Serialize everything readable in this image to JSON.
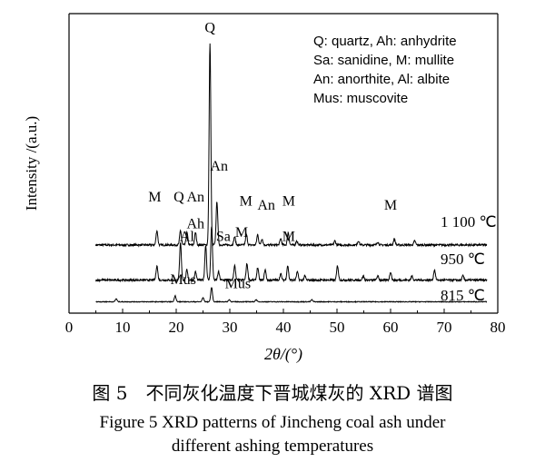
{
  "caption_cn": "图 5　不同灰化温度下晋城煤灰的 XRD 谱图",
  "caption_en_line1": "Figure 5    XRD patterns of Jincheng coal ash under",
  "caption_en_line2": "different ashing temperatures",
  "chart_data": {
    "type": "line",
    "xlabel": "2θ/(°)",
    "ylabel": "Intensity /(a.u.)",
    "xlim": [
      0,
      80
    ],
    "xticks": [
      0,
      10,
      20,
      30,
      40,
      50,
      60,
      70,
      80
    ],
    "grid": false,
    "legend": {
      "placement": "top-right",
      "entries": [
        "Q: quartz, Ah: anhydrite",
        "Sa: sanidine, M: mullite",
        "An: anorthite, Al: albite",
        "Mus: muscovite"
      ]
    },
    "series": [
      {
        "name": "1 100 ℃",
        "baseline": 0.33,
        "x_range": [
          5,
          78
        ],
        "peaks": [
          {
            "x": 16.4,
            "h": 0.07
          },
          {
            "x": 20.8,
            "h": 0.07
          },
          {
            "x": 22.0,
            "h": 0.06
          },
          {
            "x": 23.6,
            "h": 0.06
          },
          {
            "x": 26.3,
            "h": 0.98
          },
          {
            "x": 27.6,
            "h": 0.21
          },
          {
            "x": 30.9,
            "h": 0.04
          },
          {
            "x": 33.1,
            "h": 0.05
          },
          {
            "x": 35.2,
            "h": 0.05
          },
          {
            "x": 36.0,
            "h": 0.03
          },
          {
            "x": 39.5,
            "h": 0.03
          },
          {
            "x": 40.9,
            "h": 0.06
          },
          {
            "x": 42.5,
            "h": 0.02
          },
          {
            "x": 49.6,
            "h": 0.02
          },
          {
            "x": 54.0,
            "h": 0.02
          },
          {
            "x": 57.6,
            "h": 0.015
          },
          {
            "x": 60.7,
            "h": 0.03
          },
          {
            "x": 64.5,
            "h": 0.02
          }
        ]
      },
      {
        "name": "950 ℃",
        "baseline": 0.16,
        "x_range": [
          5,
          78
        ],
        "peaks": [
          {
            "x": 16.4,
            "h": 0.07
          },
          {
            "x": 20.8,
            "h": 0.18
          },
          {
            "x": 22.0,
            "h": 0.05
          },
          {
            "x": 23.6,
            "h": 0.04
          },
          {
            "x": 25.5,
            "h": 0.17
          },
          {
            "x": 26.6,
            "h": 0.26
          },
          {
            "x": 27.9,
            "h": 0.04
          },
          {
            "x": 30.9,
            "h": 0.07
          },
          {
            "x": 33.2,
            "h": 0.08
          },
          {
            "x": 35.2,
            "h": 0.06
          },
          {
            "x": 36.6,
            "h": 0.05
          },
          {
            "x": 39.5,
            "h": 0.03
          },
          {
            "x": 40.8,
            "h": 0.07
          },
          {
            "x": 42.6,
            "h": 0.04
          },
          {
            "x": 44.0,
            "h": 0.02
          },
          {
            "x": 50.1,
            "h": 0.07
          },
          {
            "x": 54.9,
            "h": 0.02
          },
          {
            "x": 57.6,
            "h": 0.02
          },
          {
            "x": 60.0,
            "h": 0.04
          },
          {
            "x": 64.0,
            "h": 0.02
          },
          {
            "x": 68.2,
            "h": 0.05
          },
          {
            "x": 73.5,
            "h": 0.02
          }
        ]
      },
      {
        "name": "815 ℃",
        "baseline": 0.055,
        "x_range": [
          5,
          78
        ],
        "peaks": [
          {
            "x": 8.8,
            "h": 0.015
          },
          {
            "x": 19.8,
            "h": 0.03
          },
          {
            "x": 25.0,
            "h": 0.02
          },
          {
            "x": 26.6,
            "h": 0.07
          },
          {
            "x": 29.9,
            "h": 0.01
          },
          {
            "x": 34.9,
            "h": 0.01
          },
          {
            "x": 45.3,
            "h": 0.01
          }
        ]
      }
    ],
    "annotations": [
      {
        "text": "Q",
        "x": 26.3,
        "y": 1.36
      },
      {
        "text": "An",
        "x": 28.0,
        "y": 0.69
      },
      {
        "text": "M",
        "x": 16.0,
        "y": 0.54
      },
      {
        "text": "Q",
        "x": 20.5,
        "y": 0.54
      },
      {
        "text": "An",
        "x": 23.6,
        "y": 0.54
      },
      {
        "text": "M",
        "x": 33.0,
        "y": 0.52
      },
      {
        "text": "An",
        "x": 36.8,
        "y": 0.5
      },
      {
        "text": "M",
        "x": 41.0,
        "y": 0.52
      },
      {
        "text": "M",
        "x": 60.0,
        "y": 0.5
      },
      {
        "text": "Ah",
        "x": 23.6,
        "y": 0.41
      },
      {
        "text": "Al",
        "x": 22.0,
        "y": 0.35
      },
      {
        "text": "Sa",
        "x": 28.8,
        "y": 0.35
      },
      {
        "text": "M",
        "x": 32.2,
        "y": 0.37
      },
      {
        "text": "M",
        "x": 41.0,
        "y": 0.35
      },
      {
        "text": "Mus",
        "x": 21.3,
        "y": 0.14
      },
      {
        "text": "Mus",
        "x": 31.5,
        "y": 0.12
      }
    ]
  }
}
